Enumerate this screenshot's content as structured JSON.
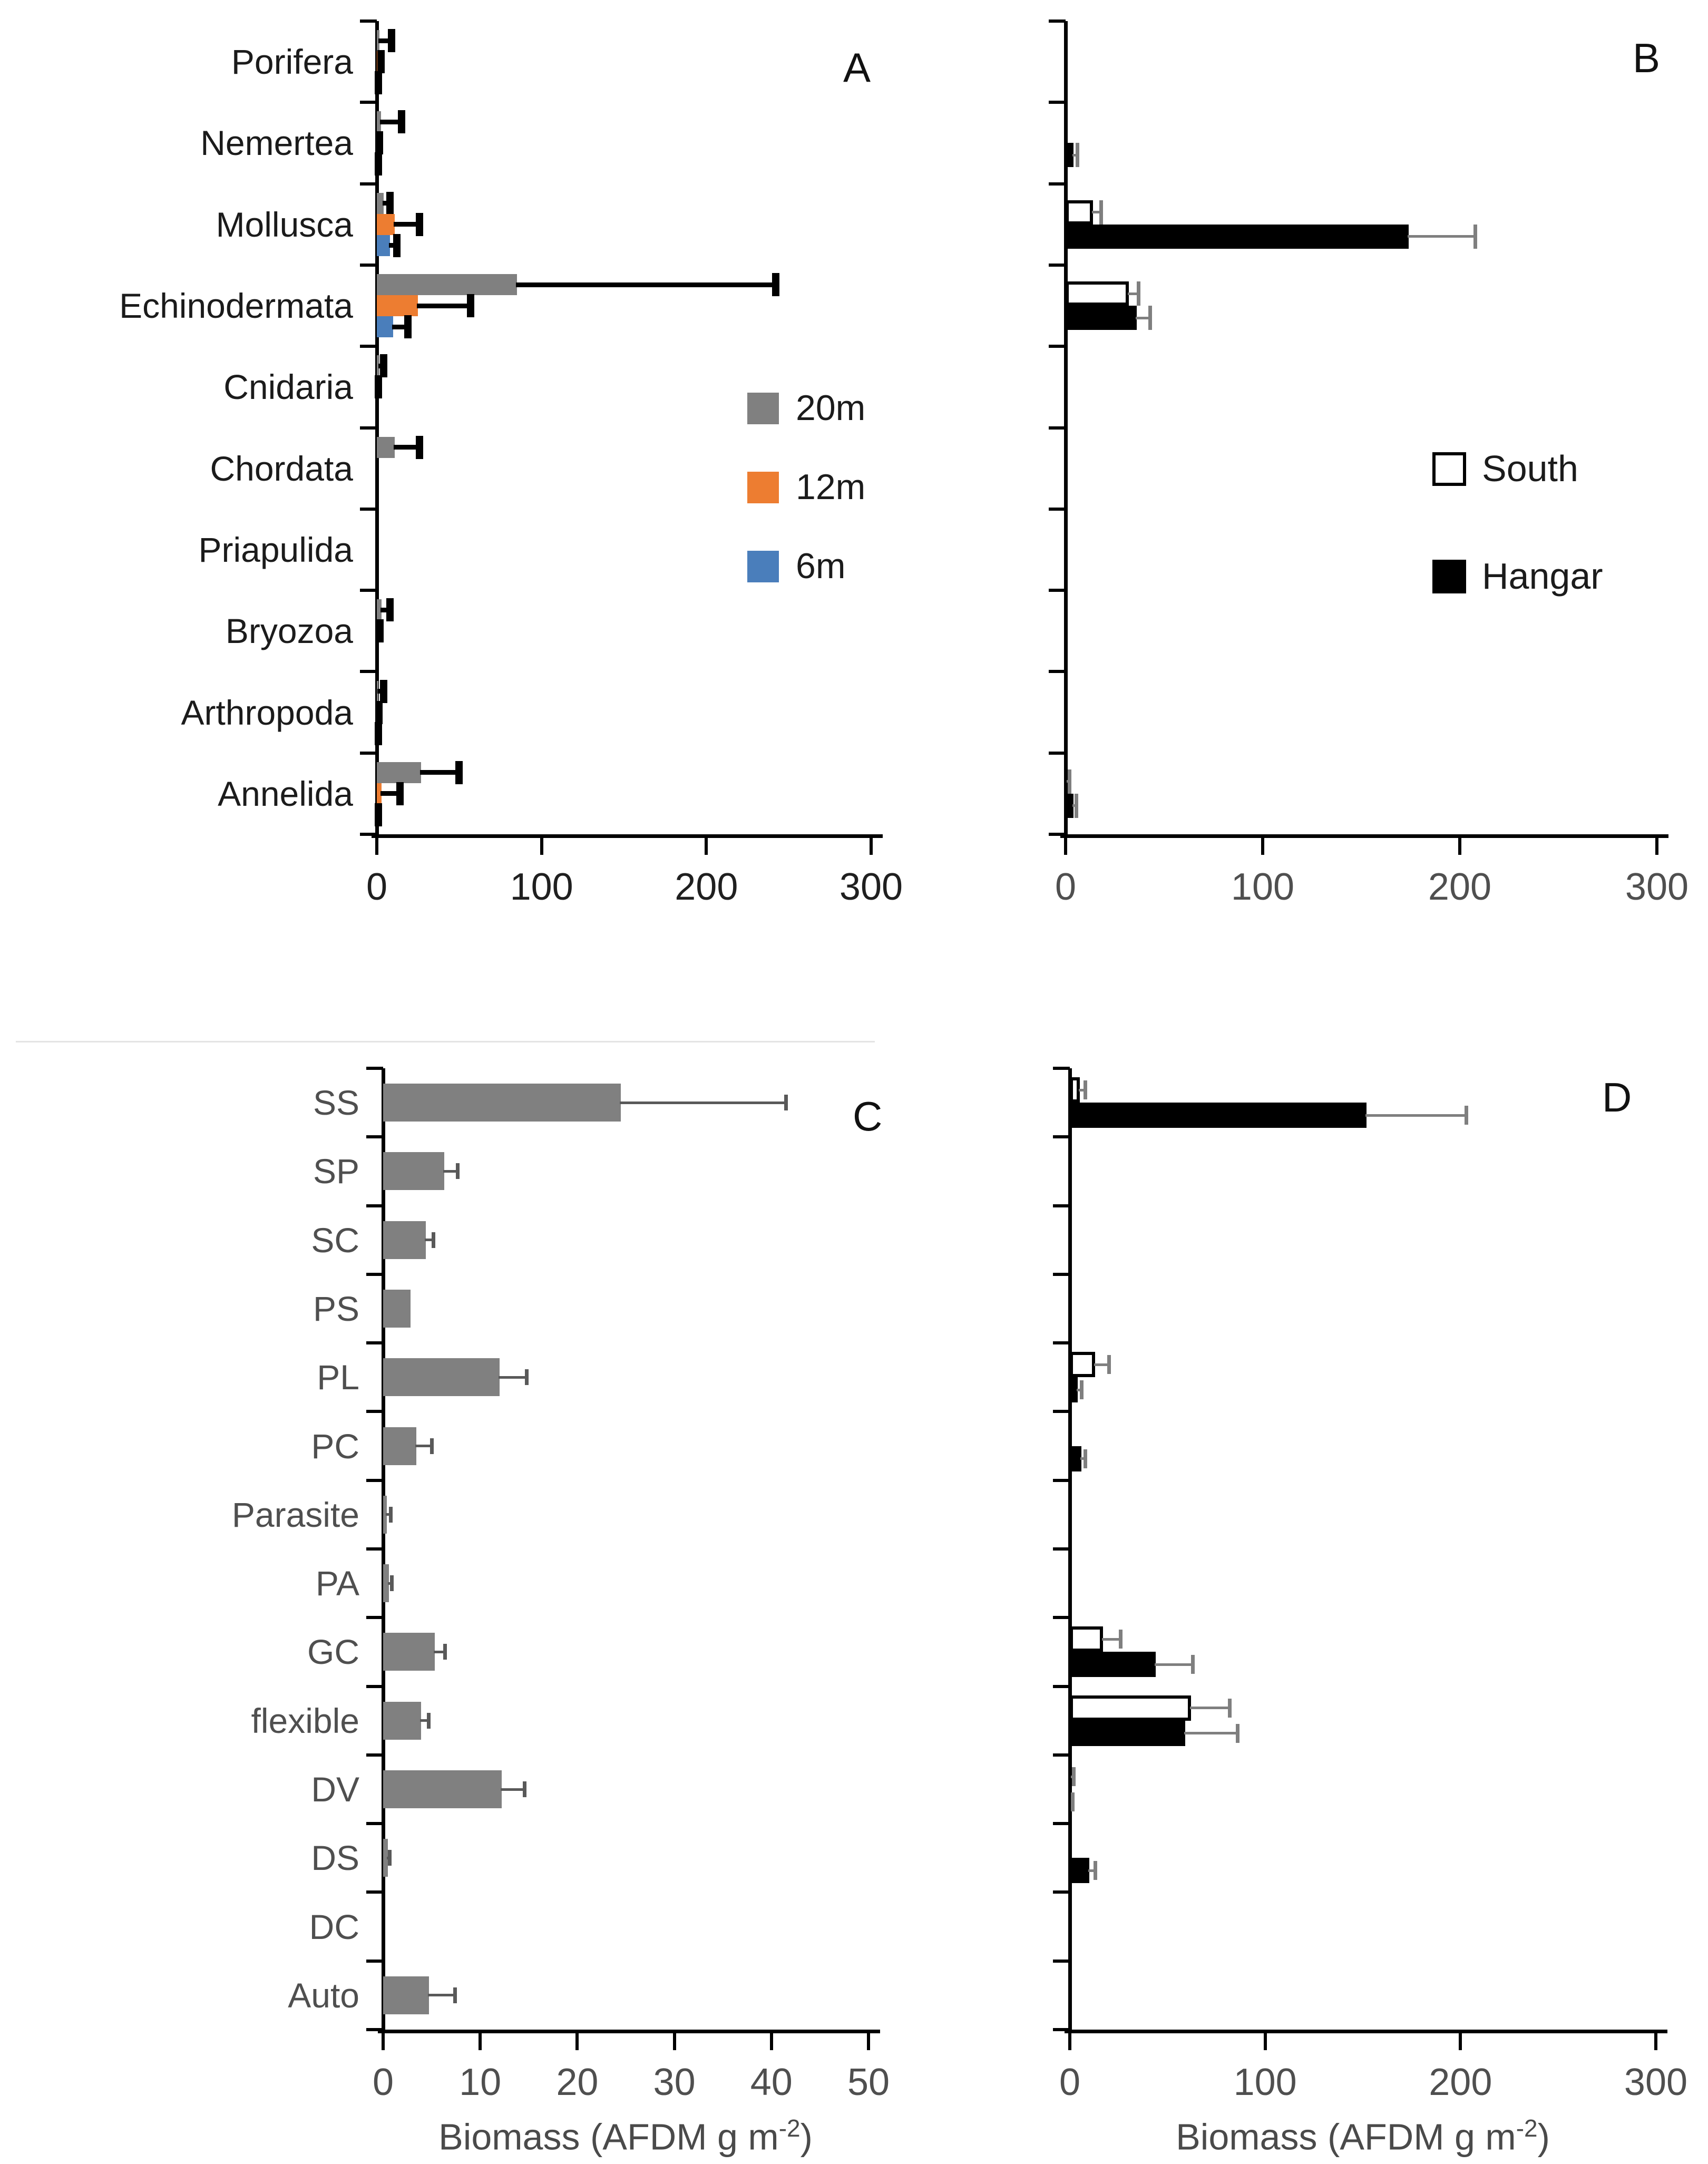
{
  "figure": {
    "kind": "four-panel horizontal bar figure",
    "panel_letters": [
      "A",
      "B",
      "C",
      "D"
    ],
    "x_axis_label": {
      "pre": "Biomass (AFDM g m",
      "sup": "-2",
      "post": ")"
    },
    "colors": {
      "depth_20m": "#808080",
      "depth_12m": "#ED7D31",
      "depth_6m": "#4A7EBB",
      "south_fill": "#FFFFFF",
      "hangar_fill": "#000000",
      "axis": "#000000"
    }
  },
  "chart_data": [
    {
      "id": "A",
      "panel_label": "A",
      "type": "bar",
      "orientation": "horizontal",
      "xlim": [
        0,
        300
      ],
      "xticks": [
        0,
        100,
        200,
        300
      ],
      "xlabel": null,
      "grid": false,
      "legend_position": "center-right-inside",
      "categories": [
        "Porifera",
        "Nemertea",
        "Mollusca",
        "Echinodermata",
        "Cnidaria",
        "Chordata",
        "Priapulida",
        "Bryozoa",
        "Arthropoda",
        "Annelida"
      ],
      "series": [
        {
          "name": "20m",
          "fill": "#808080",
          "values": [
            1.5,
            2.5,
            4,
            85,
            1.5,
            11,
            0,
            3,
            1,
            27
          ],
          "error_tips": [
            9,
            15,
            8,
            242,
            4,
            26,
            0,
            8,
            4,
            50
          ]
        },
        {
          "name": "12m",
          "fill": "#ED7D31",
          "values": [
            0.8,
            0.6,
            11,
            25,
            0.3,
            0,
            0,
            1,
            0.5,
            3
          ],
          "error_tips": [
            2.5,
            1.5,
            26,
            57,
            0.8,
            0,
            0,
            2,
            1.2,
            14
          ]
        },
        {
          "name": "6m",
          "fill": "#4A7EBB",
          "values": [
            0.3,
            0.3,
            8,
            10,
            0,
            0,
            0,
            0,
            0.3,
            0.5
          ],
          "error_tips": [
            0.8,
            0.8,
            12,
            19,
            0,
            0,
            0,
            0,
            0.8,
            1
          ]
        }
      ],
      "legend": [
        {
          "label": "20m",
          "fill": "#808080",
          "border": null
        },
        {
          "label": "12m",
          "fill": "#ED7D31",
          "border": null
        },
        {
          "label": "6m",
          "fill": "#4A7EBB",
          "border": null
        }
      ],
      "error_color": "#000000"
    },
    {
      "id": "B",
      "panel_label": "B",
      "type": "bar",
      "orientation": "horizontal",
      "xlim": [
        0,
        300
      ],
      "xticks": [
        0,
        100,
        200,
        300
      ],
      "xlabel": null,
      "grid": false,
      "legend_position": "center-right-inside",
      "categories": [
        "Porifera",
        "Nemertea",
        "Mollusca",
        "Echinodermata",
        "Cnidaria",
        "Chordata",
        "Priapulida",
        "Bryozoa",
        "Arthropoda",
        "Annelida"
      ],
      "series": [
        {
          "name": "South",
          "fill": "#FFFFFF",
          "border": "#000000",
          "values": [
            0,
            0,
            14,
            32,
            0,
            0,
            0,
            0,
            0,
            1
          ],
          "error_tips": [
            0,
            0,
            18,
            37,
            0,
            0,
            0,
            0,
            0,
            2
          ]
        },
        {
          "name": "Hangar",
          "fill": "#000000",
          "border": null,
          "values": [
            0,
            4,
            174,
            36,
            0,
            0,
            0,
            0,
            0,
            4
          ],
          "error_tips": [
            0,
            6,
            208,
            43,
            0,
            0,
            0,
            0,
            0,
            5.5
          ]
        }
      ],
      "legend": [
        {
          "label": "South",
          "fill": "#FFFFFF",
          "border": "#000000"
        },
        {
          "label": "Hangar",
          "fill": "#000000",
          "border": null
        }
      ],
      "error_color": "#7f7f7f"
    },
    {
      "id": "C",
      "panel_label": "C",
      "type": "bar",
      "orientation": "horizontal",
      "xlim": [
        0,
        50
      ],
      "xticks": [
        0,
        10,
        20,
        30,
        40,
        50
      ],
      "xlabel": {
        "pre": "Biomass (AFDM g m",
        "sup": "-2",
        "post": ")"
      },
      "grid": false,
      "legend_position": null,
      "categories": [
        "SS",
        "SP",
        "SC",
        "PS",
        "PL",
        "PC",
        "Parasite",
        "PA",
        "GC",
        "flexible",
        "DV",
        "DS",
        "DC",
        "Auto"
      ],
      "series": [
        {
          "name": "20m",
          "fill": "#808080",
          "values": [
            24.5,
            6.3,
            4.4,
            2.8,
            12,
            3.4,
            0.4,
            0.6,
            5.3,
            3.9,
            12.2,
            0.5,
            0,
            4.7
          ],
          "error_tips": [
            41.5,
            7.7,
            5.2,
            2.8,
            14.8,
            5,
            0.8,
            0.9,
            6.4,
            4.7,
            14.6,
            0.7,
            0,
            7.4
          ]
        }
      ],
      "legend": null,
      "error_color": "#595959"
    },
    {
      "id": "D",
      "panel_label": "D",
      "type": "bar",
      "orientation": "horizontal",
      "xlim": [
        0,
        300
      ],
      "xticks": [
        0,
        100,
        200,
        300
      ],
      "xlabel": {
        "pre": "Biomass (AFDM g m",
        "sup": "-2",
        "post": ")"
      },
      "grid": false,
      "legend_position": null,
      "categories": [
        "SS",
        "SP",
        "SC",
        "PS",
        "PL",
        "PC",
        "Parasite",
        "PA",
        "GC",
        "flexible",
        "DV",
        "DS",
        "DC",
        "Auto"
      ],
      "series": [
        {
          "name": "South",
          "fill": "#FFFFFF",
          "border": "#000000",
          "values": [
            5,
            0,
            0,
            0,
            13,
            0.5,
            0,
            0,
            17,
            62,
            1,
            0.5,
            0,
            0
          ],
          "error_tips": [
            8,
            0,
            0,
            0,
            20,
            0.5,
            0,
            0,
            26,
            82,
            2,
            0.5,
            0,
            0
          ]
        },
        {
          "name": "Hangar",
          "fill": "#000000",
          "border": null,
          "values": [
            152,
            0,
            0,
            0,
            4,
            6,
            0,
            0,
            44,
            59,
            1,
            10,
            0,
            0
          ],
          "error_tips": [
            203,
            0,
            0,
            0,
            6,
            8,
            0,
            0,
            63,
            86,
            1.5,
            13,
            0,
            0
          ]
        }
      ],
      "legend": null,
      "error_color": "#7f7f7f"
    }
  ]
}
